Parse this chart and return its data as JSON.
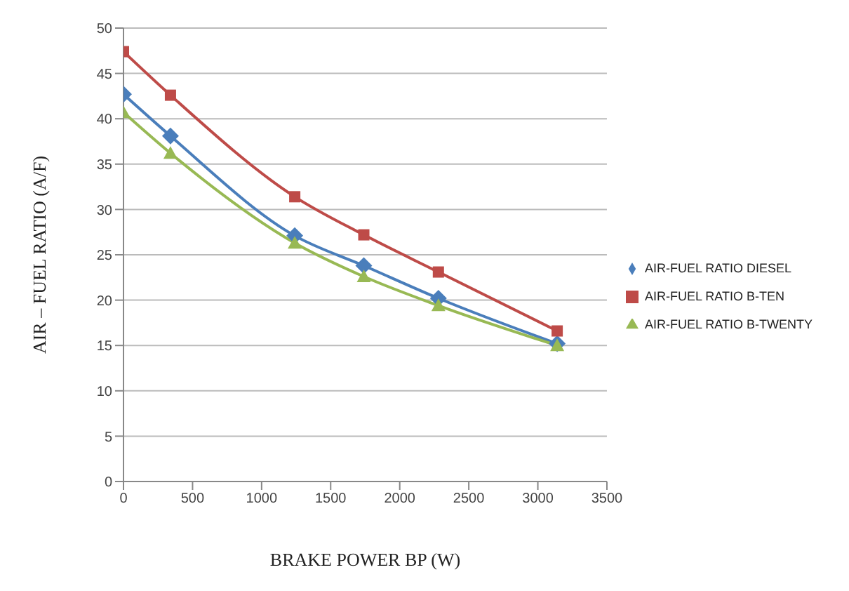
{
  "chart_data": {
    "type": "line",
    "xlabel": "BRAKE POWER BP (W)",
    "ylabel": "AIR – FUEL RATIO (A/F)",
    "x": [
      0,
      340,
      1240,
      1740,
      2280,
      3140
    ],
    "series": [
      {
        "name": "AIR-FUEL RATIO DIESEL",
        "color": "#4a7ebb",
        "marker": "diamond",
        "values": [
          42.7,
          38.1,
          27.1,
          23.8,
          20.2,
          15.2
        ]
      },
      {
        "name": "AIR-FUEL RATIO B-TEN",
        "color": "#be4b48",
        "marker": "square",
        "values": [
          47.4,
          42.6,
          31.4,
          27.2,
          23.1,
          16.6
        ]
      },
      {
        "name": "AIR-FUEL RATIO B-TWENTY",
        "color": "#98b954",
        "marker": "triangle",
        "values": [
          40.7,
          36.2,
          26.3,
          22.6,
          19.4,
          15.0
        ]
      }
    ],
    "xlim": [
      0,
      3500
    ],
    "xticks": [
      0,
      500,
      1000,
      1500,
      2000,
      2500,
      3000,
      3500
    ],
    "ylim": [
      0,
      50
    ],
    "yticks": [
      0,
      5,
      10,
      15,
      20,
      25,
      30,
      35,
      40,
      45,
      50
    ],
    "grid": "y",
    "legend": "right"
  }
}
